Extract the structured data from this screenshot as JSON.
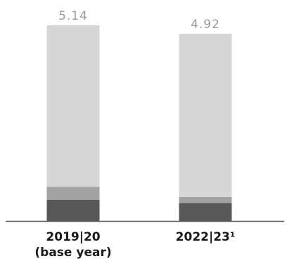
{
  "chart_data": {
    "type": "bar",
    "stacked": true,
    "categories": [
      [
        "2019|20",
        "(base year)"
      ],
      [
        "2022|23¹"
      ]
    ],
    "totals": [
      "5.14",
      "4.92"
    ],
    "series": [
      {
        "color": "#585858",
        "values": [
          0.56,
          0.47
        ]
      },
      {
        "color": "#a3a3a3",
        "values": [
          0.34,
          0.16
        ]
      },
      {
        "color": "#d6d6d6",
        "values": [
          4.24,
          4.29
        ]
      }
    ],
    "ylim": [
      0,
      5.14
    ],
    "grid": false,
    "legend": false
  }
}
